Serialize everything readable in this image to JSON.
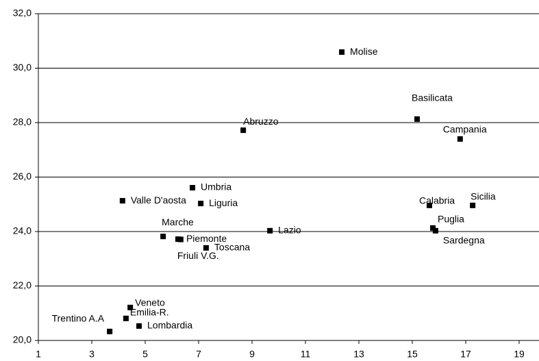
{
  "chart_data": {
    "type": "scatter",
    "labels": [
      "Molise",
      "Basilicata",
      "Campania",
      "Abruzzo",
      "Umbria",
      "Liguria",
      "Valle D'aosta",
      "Calabria",
      "Sicilia",
      "Lazio",
      "Puglia",
      "Sardegna",
      "Marche",
      "Piemonte",
      "Friuli V.G.",
      "Toscana",
      "Veneto",
      "Emilia-R.",
      "Lombardia",
      "Trentino A.A"
    ],
    "x": [
      12.36,
      15.18,
      16.79,
      8.67,
      6.77,
      7.08,
      4.15,
      15.64,
      17.26,
      9.67,
      15.77,
      15.87,
      5.67,
      6.23,
      6.33,
      7.28,
      4.44,
      4.28,
      4.77,
      3.67
    ],
    "values": [
      30.59,
      28.13,
      27.4,
      27.72,
      25.61,
      25.03,
      25.13,
      24.96,
      24.96,
      24.03,
      24.13,
      24.03,
      23.82,
      23.72,
      23.71,
      23.4,
      21.21,
      20.81,
      20.53,
      20.33
    ],
    "color": "#000000",
    "xlim": [
      1,
      20
    ],
    "xticks": [
      1,
      3,
      5,
      7,
      9,
      11,
      13,
      15,
      17,
      19
    ],
    "ylim": [
      20,
      32
    ],
    "yticks": [
      {
        "value": 20,
        "label": "20,0"
      },
      {
        "value": 22,
        "label": "22,0"
      },
      {
        "value": 24,
        "label": "24,0"
      },
      {
        "value": 26,
        "label": "26,0"
      },
      {
        "value": 28,
        "label": "28,0"
      },
      {
        "value": 30,
        "label": "30,0"
      },
      {
        "value": 32,
        "label": "32,0"
      }
    ],
    "grid": true
  }
}
